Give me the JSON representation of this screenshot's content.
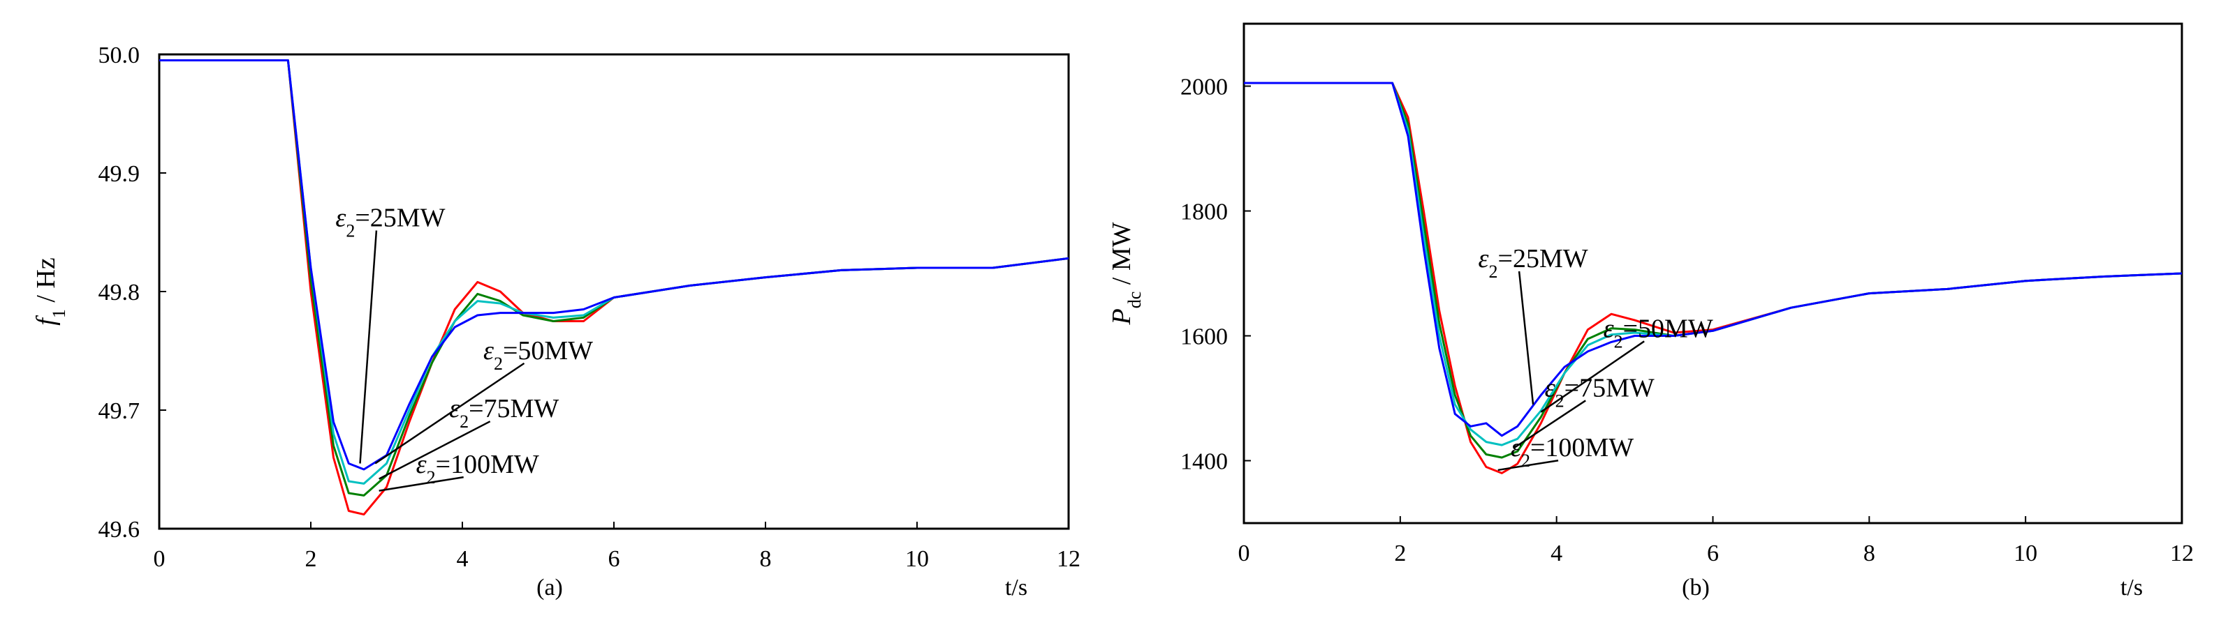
{
  "chart_data": [
    {
      "type": "line",
      "panel_label": "(a)",
      "title": "",
      "xlabel": "t/s",
      "ylabel": {
        "var": "f",
        "sub": "1",
        "unit": " / Hz"
      },
      "xlim": [
        0,
        12
      ],
      "ylim": [
        49.6,
        50.0
      ],
      "x_ticks": [
        0,
        2,
        4,
        6,
        8,
        10,
        12
      ],
      "y_ticks": [
        "49.6",
        "49.7",
        "49.8",
        "49.9",
        "50.0"
      ],
      "series": [
        {
          "name": "ε2=100MW",
          "color": "#ff0000",
          "x": [
            0,
            1.7,
            2.0,
            2.3,
            2.5,
            2.7,
            3.0,
            3.3,
            3.6,
            3.9,
            4.2,
            4.5,
            4.8,
            5.2,
            5.6,
            6.0,
            7.0,
            8.0,
            9.0,
            10.0,
            11.0,
            12.0
          ],
          "y": [
            49.995,
            49.995,
            49.8,
            49.66,
            49.615,
            49.612,
            49.635,
            49.69,
            49.74,
            49.785,
            49.808,
            49.8,
            49.782,
            49.775,
            49.775,
            49.795,
            49.805,
            49.812,
            49.818,
            49.82,
            49.82,
            49.828
          ]
        },
        {
          "name": "ε2=75MW",
          "color": "#008000",
          "x": [
            0,
            1.7,
            2.0,
            2.3,
            2.5,
            2.7,
            3.0,
            3.3,
            3.6,
            3.9,
            4.2,
            4.5,
            4.8,
            5.2,
            5.6,
            6.0,
            7.0,
            8.0,
            9.0,
            10.0,
            11.0,
            12.0
          ],
          "y": [
            49.995,
            49.995,
            49.81,
            49.67,
            49.63,
            49.628,
            49.645,
            49.695,
            49.74,
            49.775,
            49.798,
            49.792,
            49.78,
            49.775,
            49.778,
            49.795,
            49.805,
            49.812,
            49.818,
            49.82,
            49.82,
            49.828
          ]
        },
        {
          "name": "ε2=50MW",
          "color": "#00c0c0",
          "x": [
            0,
            1.7,
            2.0,
            2.3,
            2.5,
            2.7,
            3.0,
            3.3,
            3.6,
            3.9,
            4.2,
            4.5,
            4.8,
            5.2,
            5.6,
            6.0,
            7.0,
            8.0,
            9.0,
            10.0,
            11.0,
            12.0
          ],
          "y": [
            49.995,
            49.995,
            49.82,
            49.68,
            49.64,
            49.638,
            49.655,
            49.7,
            49.745,
            49.775,
            49.792,
            49.79,
            49.782,
            49.778,
            49.78,
            49.795,
            49.805,
            49.812,
            49.818,
            49.82,
            49.82,
            49.828
          ]
        },
        {
          "name": "ε2=25MW",
          "color": "#0000ff",
          "x": [
            0,
            1.7,
            2.0,
            2.3,
            2.5,
            2.7,
            3.0,
            3.3,
            3.6,
            3.9,
            4.2,
            4.5,
            4.8,
            5.2,
            5.6,
            6.0,
            7.0,
            8.0,
            9.0,
            10.0,
            11.0,
            12.0
          ],
          "y": [
            49.995,
            49.995,
            49.82,
            49.69,
            49.655,
            49.65,
            49.662,
            49.705,
            49.745,
            49.77,
            49.78,
            49.782,
            49.782,
            49.782,
            49.785,
            49.795,
            49.805,
            49.812,
            49.818,
            49.82,
            49.82,
            49.828
          ]
        }
      ],
      "annotations": [
        {
          "text_var": "ε",
          "text_sub": "2",
          "text_rest": "=25MW",
          "label_xy": [
            3.05,
            49.855
          ],
          "point_xy": [
            2.65,
            49.655
          ]
        },
        {
          "text_var": "ε",
          "text_sub": "2",
          "text_rest": "=50MW",
          "label_xy": [
            5.0,
            49.743
          ],
          "point_xy": [
            2.85,
            49.655
          ]
        },
        {
          "text_var": "ε",
          "text_sub": "2",
          "text_rest": "=75MW",
          "label_xy": [
            4.55,
            49.694
          ],
          "point_xy": [
            2.9,
            49.642
          ]
        },
        {
          "text_var": "ε",
          "text_sub": "2",
          "text_rest": "=100MW",
          "label_xy": [
            4.2,
            49.647
          ],
          "point_xy": [
            2.9,
            49.632
          ]
        }
      ]
    },
    {
      "type": "line",
      "panel_label": "(b)",
      "title": "",
      "xlabel": "t/s",
      "ylabel": {
        "var": "P",
        "sub": "dc",
        "unit": " / MW"
      },
      "xlim": [
        0,
        12
      ],
      "ylim": [
        1300,
        2100
      ],
      "x_ticks": [
        0,
        2,
        4,
        6,
        8,
        10,
        12
      ],
      "y_ticks": [
        "1400",
        "1600",
        "1800",
        "2000"
      ],
      "series": [
        {
          "name": "ε2=100MW",
          "color": "#ff0000",
          "x": [
            0,
            1.9,
            2.1,
            2.3,
            2.5,
            2.7,
            2.9,
            3.1,
            3.3,
            3.5,
            3.8,
            4.1,
            4.4,
            4.7,
            5.0,
            5.5,
            6.0,
            7.0,
            8.0,
            9.0,
            10.0,
            11.0,
            12.0
          ],
          "y": [
            2005,
            2005,
            1950,
            1800,
            1640,
            1520,
            1430,
            1390,
            1380,
            1395,
            1460,
            1540,
            1610,
            1635,
            1625,
            1605,
            1610,
            1645,
            1668,
            1675,
            1688,
            1695,
            1700
          ]
        },
        {
          "name": "ε2=75MW",
          "color": "#008000",
          "x": [
            0,
            1.9,
            2.1,
            2.3,
            2.5,
            2.7,
            2.9,
            3.1,
            3.3,
            3.5,
            3.8,
            4.1,
            4.4,
            4.7,
            5.0,
            5.5,
            6.0,
            7.0,
            8.0,
            9.0,
            10.0,
            11.0,
            12.0
          ],
          "y": [
            2005,
            2005,
            1940,
            1780,
            1620,
            1505,
            1440,
            1410,
            1405,
            1415,
            1470,
            1540,
            1595,
            1612,
            1610,
            1600,
            1608,
            1645,
            1668,
            1675,
            1688,
            1695,
            1700
          ]
        },
        {
          "name": "ε2=50MW",
          "color": "#00c0c0",
          "x": [
            0,
            1.9,
            2.1,
            2.3,
            2.5,
            2.7,
            2.9,
            3.1,
            3.3,
            3.5,
            3.8,
            4.1,
            4.4,
            4.7,
            5.0,
            5.5,
            6.0,
            7.0,
            8.0,
            9.0,
            10.0,
            11.0,
            12.0
          ],
          "y": [
            2005,
            2005,
            1930,
            1760,
            1600,
            1490,
            1450,
            1430,
            1425,
            1435,
            1480,
            1540,
            1585,
            1602,
            1605,
            1600,
            1608,
            1645,
            1668,
            1675,
            1688,
            1695,
            1700
          ]
        },
        {
          "name": "ε2=25MW",
          "color": "#0000ff",
          "x": [
            0,
            1.9,
            2.1,
            2.3,
            2.5,
            2.7,
            2.9,
            3.1,
            3.3,
            3.5,
            3.8,
            4.1,
            4.4,
            4.7,
            5.0,
            5.5,
            6.0,
            7.0,
            8.0,
            9.0,
            10.0,
            11.0,
            12.0
          ],
          "y": [
            2005,
            2005,
            1920,
            1740,
            1580,
            1475,
            1455,
            1460,
            1440,
            1455,
            1505,
            1550,
            1575,
            1590,
            1600,
            1600,
            1608,
            1645,
            1668,
            1675,
            1688,
            1695,
            1700
          ]
        }
      ],
      "annotations": [
        {
          "text_var": "ε",
          "text_sub": "2",
          "text_rest": "=25MW",
          "label_xy": [
            3.7,
            1710
          ],
          "point_xy": [
            3.7,
            1490
          ]
        },
        {
          "text_var": "ε",
          "text_sub": "2",
          "text_rest": "=50MW",
          "label_xy": [
            5.3,
            1598
          ],
          "point_xy": [
            3.8,
            1478
          ]
        },
        {
          "text_var": "ε",
          "text_sub": "2",
          "text_rest": "=75MW",
          "label_xy": [
            4.55,
            1503
          ],
          "point_xy": [
            3.45,
            1420
          ]
        },
        {
          "text_var": "ε",
          "text_sub": "2",
          "text_rest": "=100MW",
          "label_xy": [
            4.2,
            1407
          ],
          "point_xy": [
            3.25,
            1385
          ]
        }
      ]
    }
  ]
}
